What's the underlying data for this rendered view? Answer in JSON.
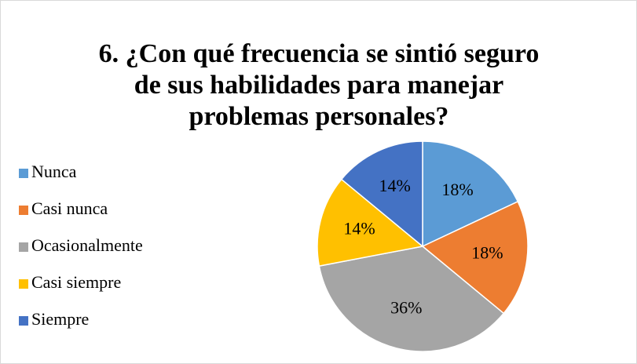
{
  "chart_data": {
    "type": "pie",
    "title": "6. ¿Con qué frecuencia se sintió seguro de sus habilidades para manejar problemas personales?",
    "categories": [
      "Nunca",
      "Casi nunca",
      "Ocasionalmente",
      "Casi siempre",
      "Siempre"
    ],
    "values": [
      18,
      18,
      36,
      14,
      14
    ],
    "value_labels": [
      "18%",
      "18%",
      "36%",
      "14%",
      "14%"
    ],
    "colors": [
      "#5b9bd5",
      "#ed7d31",
      "#a5a5a5",
      "#ffc000",
      "#4472c4"
    ],
    "legend": "left"
  }
}
